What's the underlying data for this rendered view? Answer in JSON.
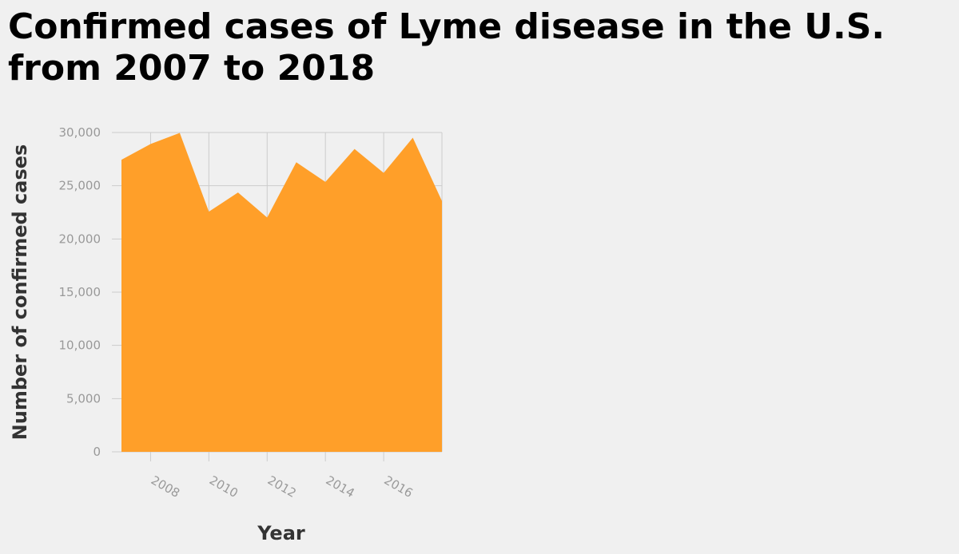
{
  "chart_data": {
    "type": "area",
    "title": "Confirmed cases of Lyme disease in the U.S. from 2007 to 2018",
    "xlabel": "Year",
    "ylabel": "Number of confirmed cases",
    "x": [
      2007,
      2008,
      2009,
      2010,
      2011,
      2012,
      2013,
      2014,
      2015,
      2016,
      2017,
      2018
    ],
    "series": [
      {
        "values": [
          27444,
          28921,
          29959,
          22561,
          24364,
          22014,
          27203,
          25359,
          28453,
          26203,
          29513,
          23558
        ]
      }
    ],
    "xlim": [
      2007,
      2018
    ],
    "ylim": [
      0,
      30000
    ],
    "x_ticks": [
      2008,
      2010,
      2012,
      2014,
      2016
    ],
    "x_tick_labels": [
      "2008",
      "2010",
      "2012",
      "2014",
      "2016"
    ],
    "y_ticks": [
      0,
      5000,
      10000,
      15000,
      20000,
      25000,
      30000
    ],
    "y_tick_labels": [
      "0",
      "5,000",
      "10,000",
      "15,000",
      "20,000",
      "25,000",
      "30,000"
    ],
    "grid": true,
    "fill_color": "#ff9f29",
    "grid_color": "#cccccc",
    "background_color": "#f0f0f0"
  }
}
